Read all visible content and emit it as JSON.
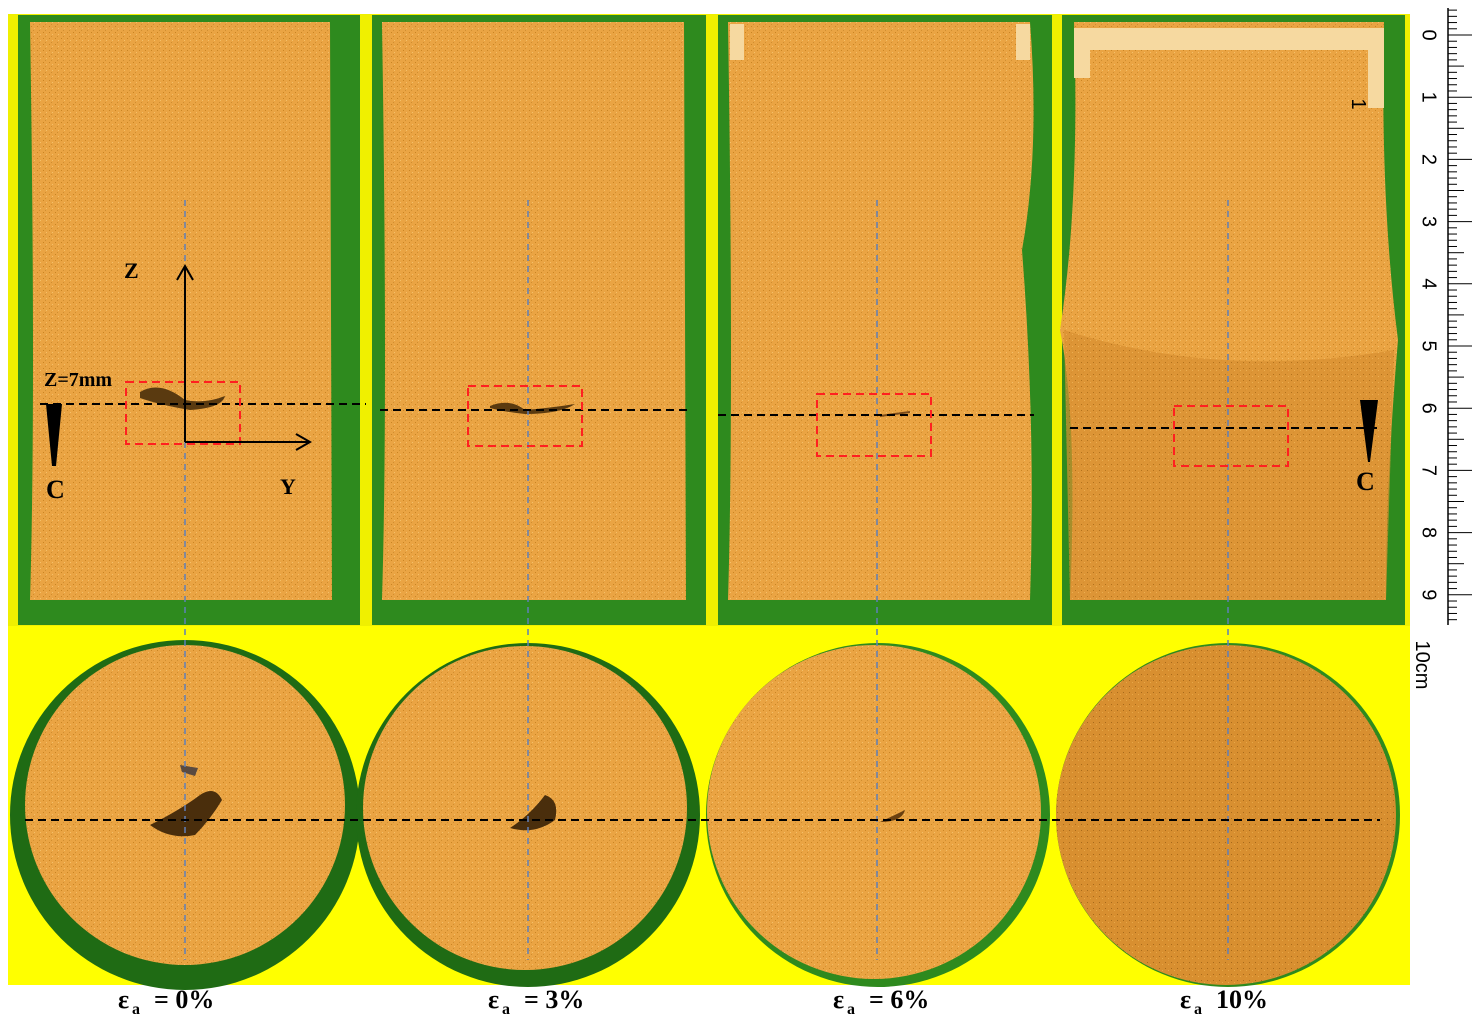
{
  "annotations": {
    "z_axis": "Z",
    "y_axis": "Y",
    "z_level": "Z=7mm",
    "section_left": "C",
    "section_right": "C"
  },
  "ruler": {
    "labels": [
      "0",
      "1",
      "2",
      "3",
      "4",
      "5",
      "6",
      "7",
      "8",
      "9"
    ],
    "unit_label": "10cm",
    "marker": "1"
  },
  "panels": [
    {
      "caption": {
        "symbol": "ε",
        "subscript": "a",
        "text": "= 0%"
      }
    },
    {
      "caption": {
        "symbol": "ε",
        "subscript": "a",
        "text": "= 3%"
      }
    },
    {
      "caption": {
        "symbol": "ε",
        "subscript": "a",
        "text": "= 6%"
      }
    },
    {
      "caption": {
        "symbol": "ε",
        "subscript": "a",
        "text": "10%"
      }
    }
  ]
}
